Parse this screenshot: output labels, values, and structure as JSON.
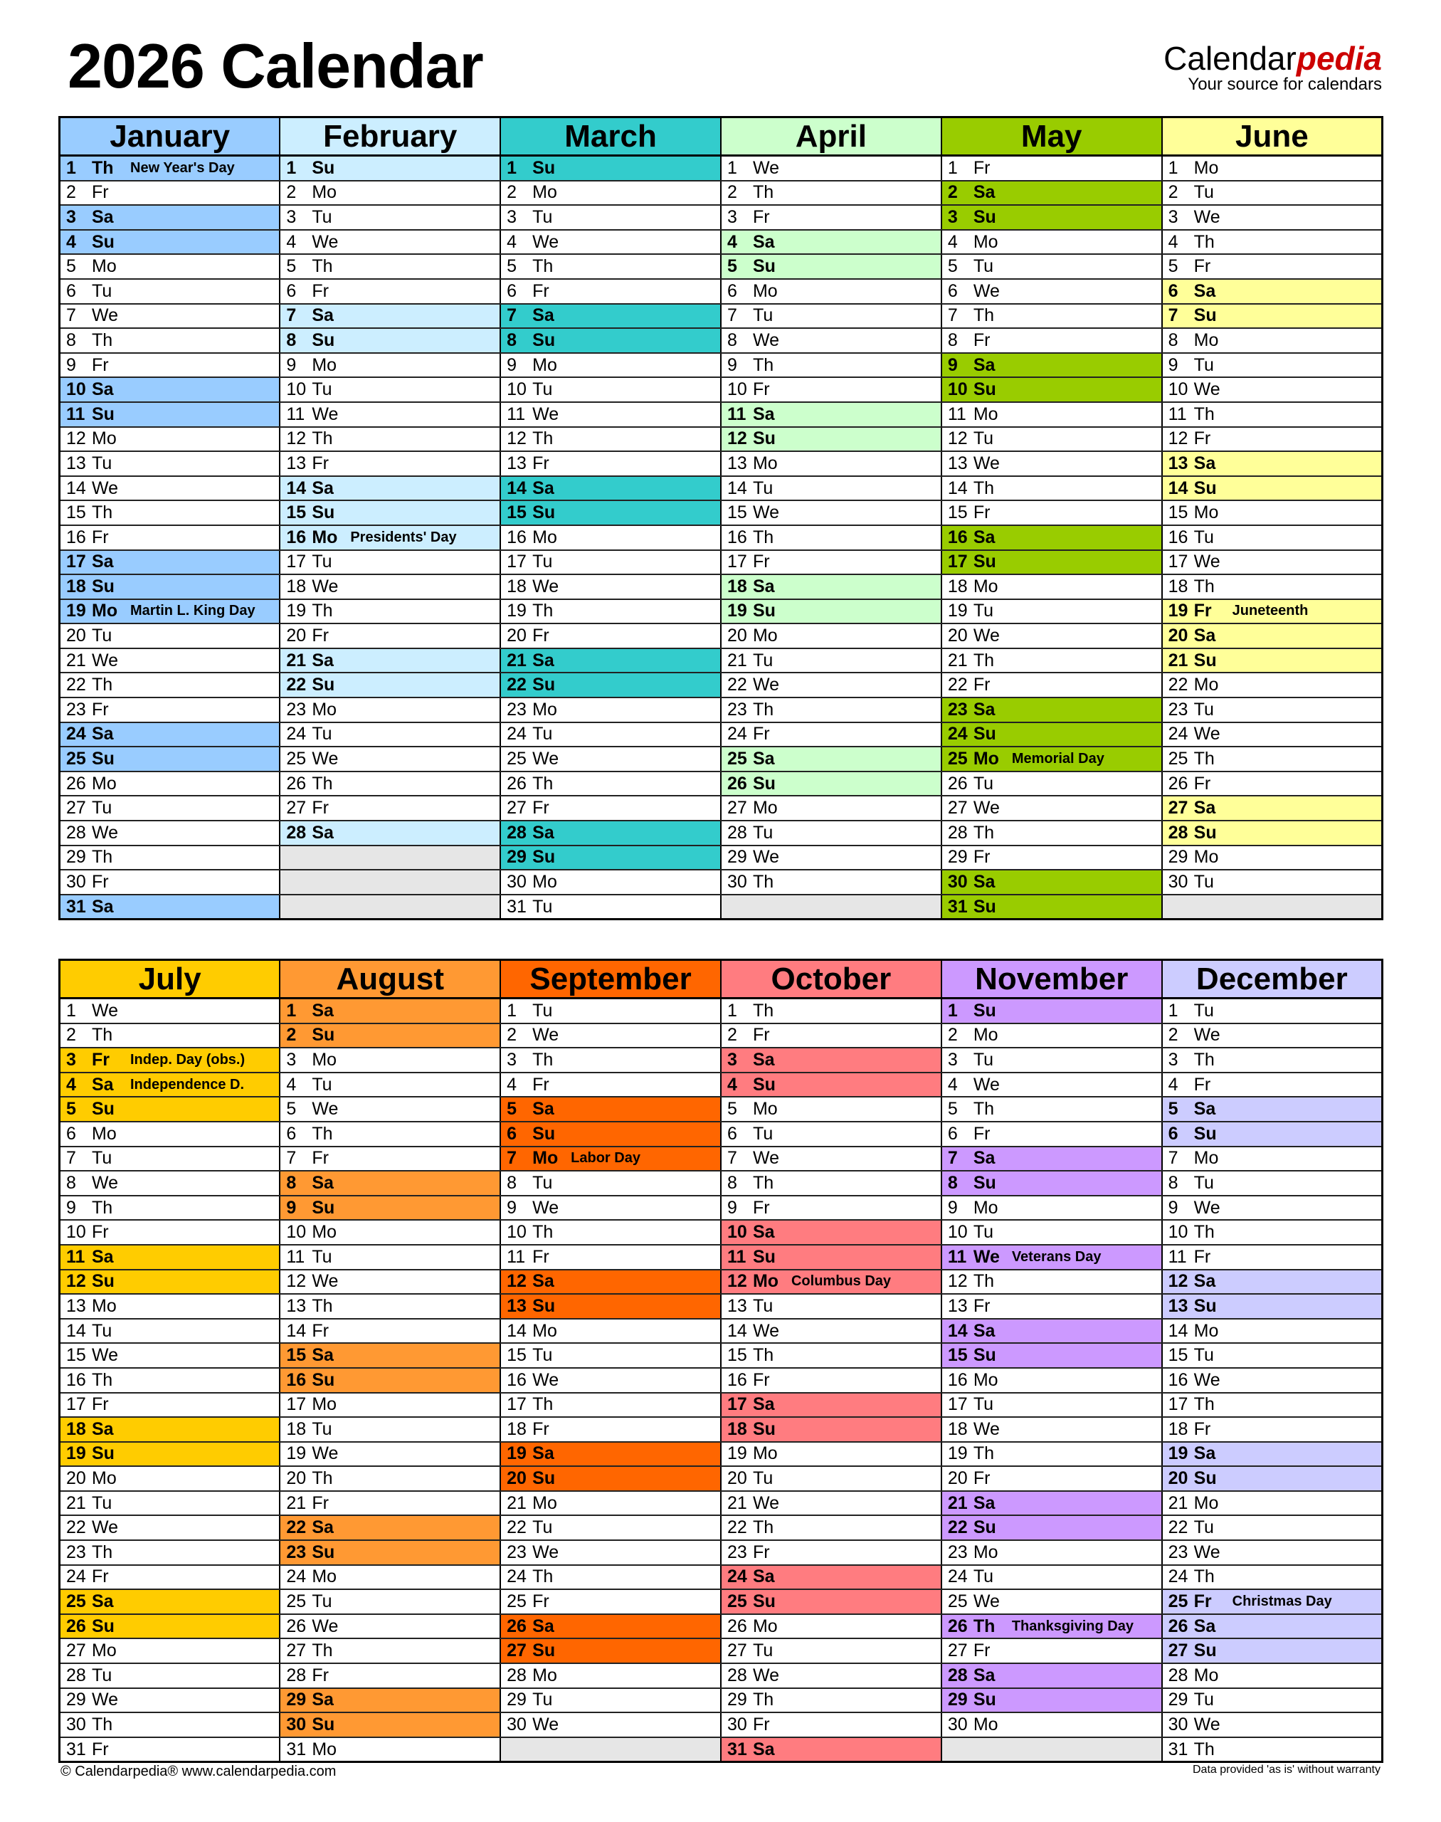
{
  "title": "2026 Calendar",
  "logo": {
    "brand_main": "Calendar",
    "brand_accent": "pedia",
    "tagline": "Your source for calendars"
  },
  "footer": {
    "left": "© Calendarpedia®   www.calendarpedia.com",
    "right": "Data provided 'as is' without warranty"
  },
  "empty_color": "#e6e6e6",
  "halves": [
    {
      "months": [
        {
          "name": "January",
          "color": "#99ccff",
          "days": "Th Fr Sa Su Mo Tu We Th Fr Sa Su Mo Tu We Th Fr Sa Su Mo Tu We Th Fr Sa Su Mo Tu We Th Fr Sa",
          "holidays": {
            "1": "New Year's Day",
            "19": "Martin L. King Day"
          }
        },
        {
          "name": "February",
          "color": "#cceeff",
          "days": "Su Mo Tu We Th Fr Sa Su Mo Tu We Th Fr Sa Su Mo Tu We Th Fr Sa Su Mo Tu We Th Fr Sa",
          "holidays": {
            "16": "Presidents' Day"
          }
        },
        {
          "name": "March",
          "color": "#33cccc",
          "days": "Su Mo Tu We Th Fr Sa Su Mo Tu We Th Fr Sa Su Mo Tu We Th Fr Sa Su Mo Tu We Th Fr Sa Su Mo Tu",
          "holidays": {}
        },
        {
          "name": "April",
          "color": "#ccffcc",
          "days": "We Th Fr Sa Su Mo Tu We Th Fr Sa Su Mo Tu We Th Fr Sa Su Mo Tu We Th Fr Sa Su Mo Tu We Th",
          "holidays": {}
        },
        {
          "name": "May",
          "color": "#99cc00",
          "days": "Fr Sa Su Mo Tu We Th Fr Sa Su Mo Tu We Th Fr Sa Su Mo Tu We Th Fr Sa Su Mo Tu We Th Fr Sa Su",
          "holidays": {
            "25": "Memorial Day"
          }
        },
        {
          "name": "June",
          "color": "#ffff99",
          "days": "Mo Tu We Th Fr Sa Su Mo Tu We Th Fr Sa Su Mo Tu We Th Fr Sa Su Mo Tu We Th Fr Sa Su Mo Tu",
          "holidays": {
            "19": "Juneteenth"
          }
        }
      ]
    },
    {
      "months": [
        {
          "name": "July",
          "color": "#ffcc00",
          "days": "We Th Fr Sa Su Mo Tu We Th Fr Sa Su Mo Tu We Th Fr Sa Su Mo Tu We Th Fr Sa Su Mo Tu We Th Fr",
          "holidays": {
            "3": "Indep. Day (obs.)",
            "4": "Independence D."
          }
        },
        {
          "name": "August",
          "color": "#ff9933",
          "days": "Sa Su Mo Tu We Th Fr Sa Su Mo Tu We Th Fr Sa Su Mo Tu We Th Fr Sa Su Mo Tu We Th Fr Sa Su Mo",
          "holidays": {}
        },
        {
          "name": "September",
          "color": "#ff6600",
          "days": "Tu We Th Fr Sa Su Mo Tu We Th Fr Sa Su Mo Tu We Th Fr Sa Su Mo Tu We Th Fr Sa Su Mo Tu We",
          "holidays": {
            "7": "Labor Day"
          }
        },
        {
          "name": "October",
          "color": "#ff7c80",
          "days": "Th Fr Sa Su Mo Tu We Th Fr Sa Su Mo Tu We Th Fr Sa Su Mo Tu We Th Fr Sa Su Mo Tu We Th Fr Sa",
          "holidays": {
            "12": "Columbus Day"
          }
        },
        {
          "name": "November",
          "color": "#cc99ff",
          "days": "Su Mo Tu We Th Fr Sa Su Mo Tu We Th Fr Sa Su Mo Tu We Th Fr Sa Su Mo Tu We Th Fr Sa Su Mo",
          "holidays": {
            "11": "Veterans Day",
            "26": "Thanksgiving Day"
          }
        },
        {
          "name": "December",
          "color": "#ccccff",
          "days": "Tu We Th Fr Sa Su Mo Tu We Th Fr Sa Su Mo Tu We Th Fr Sa Su Mo Tu We Th Fr Sa Su Mo Tu We Th",
          "holidays": {
            "25": "Christmas Day"
          }
        }
      ]
    }
  ]
}
